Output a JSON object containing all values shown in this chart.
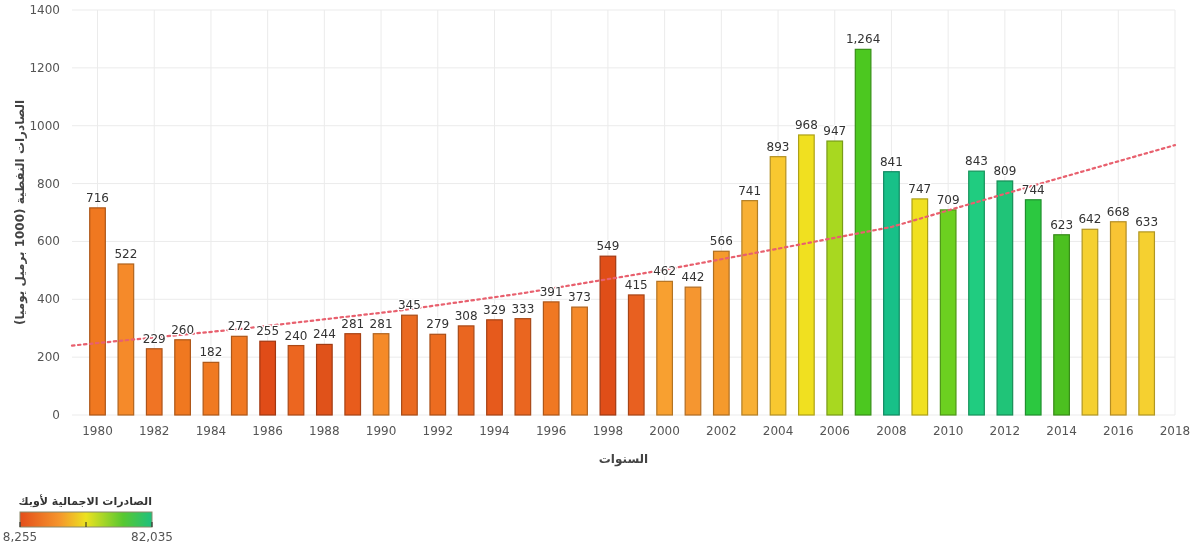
{
  "chart_data": {
    "type": "bar",
    "xlabel": "السنوات",
    "ylabel": "الصادرات النفطية (1000 برميل يوميا)",
    "clabel": "الصادرات الاجمالية لأوبك",
    "clim": [
      8255,
      82035
    ],
    "cticks": [
      {
        "value": 8255,
        "label": "8,255"
      },
      {
        "value": 45145,
        "label": null
      },
      {
        "value": 82035,
        "label": "82,035"
      }
    ],
    "x": [
      1980,
      1981,
      1982,
      1983,
      1984,
      1985,
      1986,
      1987,
      1988,
      1989,
      1990,
      1991,
      1992,
      1993,
      1994,
      1995,
      1996,
      1997,
      1998,
      1999,
      2000,
      2001,
      2002,
      2003,
      2004,
      2005,
      2006,
      2007,
      2008,
      2009,
      2010,
      2011,
      2012,
      2013,
      2014,
      2015,
      2016,
      2017
    ],
    "xlim": [
      1979.1,
      2018
    ],
    "xticks": [
      1980,
      1982,
      1984,
      1986,
      1988,
      1990,
      1992,
      1994,
      1996,
      1998,
      2000,
      2002,
      2004,
      2006,
      2008,
      2010,
      2012,
      2014,
      2016,
      2018
    ],
    "ylim": [
      0,
      1400
    ],
    "yticks": [
      0,
      200,
      400,
      600,
      800,
      1000,
      1200,
      1400
    ],
    "grid": true,
    "series": [
      {
        "values": [
          716,
          522,
          229,
          260,
          182,
          272,
          255,
          240,
          244,
          281,
          281,
          345,
          279,
          308,
          329,
          333,
          391,
          373,
          549,
          415,
          462,
          442,
          566,
          741,
          893,
          968,
          947,
          1264,
          841,
          747,
          709,
          843,
          809,
          744,
          623,
          642,
          668,
          633
        ],
        "value_labels": [
          "716",
          "522",
          "229",
          "260",
          "182",
          "272",
          "255",
          "240",
          "244",
          "281",
          "281",
          "345",
          "279",
          "308",
          "329",
          "333",
          "391",
          "373",
          "549",
          "415",
          "462",
          "442",
          "566",
          "741",
          "893",
          "968",
          "947",
          "1,264",
          "841",
          "747",
          "709",
          "843",
          "809",
          "744",
          "623",
          "642",
          "668",
          "633"
        ],
        "colors": [
          "#f07820",
          "#f58a2a",
          "#f07424",
          "#f07820",
          "#f07a22",
          "#f07822",
          "#e04c18",
          "#ec6620",
          "#e0521a",
          "#e85c1c",
          "#f58a28",
          "#ea6a20",
          "#ec6c20",
          "#ea6620",
          "#e65a1c",
          "#ea6620",
          "#f07822",
          "#f58a2a",
          "#e04e18",
          "#e86020",
          "#f8a030",
          "#f59630",
          "#f59a2c",
          "#f8b034",
          "#f8c830",
          "#f0e020",
          "#a8d820",
          "#4cc820",
          "#18c088",
          "#f0e020",
          "#6cd020",
          "#20cc80",
          "#20c478",
          "#2cc840",
          "#4cc020",
          "#f5d030",
          "#f8c434",
          "#f5d030"
        ]
      },
      {
        "type": "line",
        "x": [
          1979.1,
          1985,
          1990.5,
          1995,
          2000,
          2004,
          2008,
          2013,
          2018
        ],
        "values": [
          240,
          297,
          359,
          421,
          502,
          575,
          650,
          793,
          933
        ],
        "color": "#e8606e",
        "line_style": "dotted"
      }
    ]
  }
}
